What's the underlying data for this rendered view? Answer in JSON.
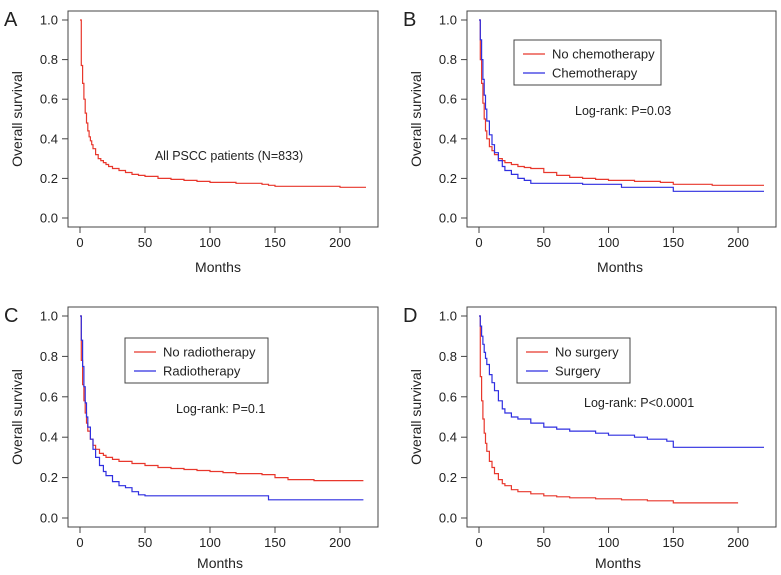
{
  "chart_data": [
    {
      "panel": "A",
      "type": "line",
      "xlabel": "Months",
      "ylabel": "Overall survival",
      "xlim": [
        0,
        220
      ],
      "ylim": [
        0,
        1
      ],
      "xticks": [
        "0",
        "50",
        "100",
        "150",
        "200"
      ],
      "yticks": [
        "0.0",
        "0.2",
        "0.4",
        "0.6",
        "0.8",
        "1.0"
      ],
      "annotation": "All PSCC patients (N=833)",
      "legend": null,
      "series": [
        {
          "name": "All PSCC patients",
          "color": "#e8372c",
          "x": [
            0,
            1,
            2,
            3,
            4,
            5,
            6,
            7,
            8,
            9,
            10,
            12,
            14,
            16,
            18,
            20,
            22,
            25,
            30,
            35,
            40,
            45,
            50,
            60,
            70,
            80,
            90,
            100,
            110,
            120,
            130,
            140,
            145,
            150,
            160,
            170,
            180,
            190,
            200,
            210,
            220
          ],
          "y": [
            1.0,
            0.77,
            0.68,
            0.6,
            0.53,
            0.48,
            0.44,
            0.41,
            0.39,
            0.37,
            0.35,
            0.32,
            0.3,
            0.29,
            0.28,
            0.27,
            0.26,
            0.25,
            0.24,
            0.23,
            0.22,
            0.215,
            0.21,
            0.2,
            0.195,
            0.19,
            0.185,
            0.18,
            0.18,
            0.175,
            0.175,
            0.17,
            0.165,
            0.16,
            0.16,
            0.16,
            0.16,
            0.16,
            0.155,
            0.155,
            0.155
          ]
        }
      ]
    },
    {
      "panel": "B",
      "type": "line",
      "xlabel": "Months",
      "ylabel": "Overall survival",
      "xlim": [
        0,
        220
      ],
      "ylim": [
        0,
        1
      ],
      "xticks": [
        "0",
        "50",
        "100",
        "150",
        "200"
      ],
      "yticks": [
        "0.0",
        "0.2",
        "0.4",
        "0.6",
        "0.8",
        "1.0"
      ],
      "annotation": "Log-rank: P=0.03",
      "legend": [
        "No chemotherapy",
        "Chemotherapy"
      ],
      "series": [
        {
          "name": "No chemotherapy",
          "color": "#e8372c",
          "x": [
            0,
            1,
            2,
            3,
            4,
            5,
            6,
            8,
            10,
            12,
            15,
            18,
            20,
            25,
            30,
            35,
            40,
            50,
            60,
            70,
            80,
            90,
            100,
            110,
            120,
            140,
            150,
            160,
            180,
            200,
            220
          ],
          "y": [
            1.0,
            0.8,
            0.68,
            0.58,
            0.5,
            0.44,
            0.4,
            0.36,
            0.34,
            0.32,
            0.3,
            0.29,
            0.28,
            0.27,
            0.26,
            0.255,
            0.25,
            0.23,
            0.215,
            0.205,
            0.2,
            0.195,
            0.19,
            0.19,
            0.185,
            0.18,
            0.17,
            0.17,
            0.165,
            0.165,
            0.165
          ]
        },
        {
          "name": "Chemotherapy",
          "color": "#2f2fe0",
          "x": [
            0,
            1,
            2,
            3,
            4,
            5,
            6,
            8,
            10,
            12,
            15,
            18,
            20,
            25,
            30,
            35,
            40,
            50,
            60,
            80,
            100,
            110,
            120,
            140,
            150,
            160,
            180,
            200,
            220
          ],
          "y": [
            1.0,
            0.9,
            0.8,
            0.7,
            0.62,
            0.55,
            0.49,
            0.42,
            0.37,
            0.33,
            0.29,
            0.26,
            0.24,
            0.22,
            0.2,
            0.19,
            0.175,
            0.175,
            0.175,
            0.17,
            0.17,
            0.155,
            0.155,
            0.155,
            0.135,
            0.135,
            0.135,
            0.135,
            0.135
          ]
        }
      ]
    },
    {
      "panel": "C",
      "type": "line",
      "xlabel": "Months",
      "ylabel": "Overall survival",
      "xlim": [
        0,
        220
      ],
      "ylim": [
        0,
        1
      ],
      "xticks": [
        "0",
        "50",
        "100",
        "150",
        "200"
      ],
      "yticks": [
        "0.0",
        "0.2",
        "0.4",
        "0.6",
        "0.8",
        "1.0"
      ],
      "annotation": "Log-rank: P=0.1",
      "legend": [
        "No radiotherapy",
        "Radiotherapy"
      ],
      "series": [
        {
          "name": "No radiotherapy",
          "color": "#e8372c",
          "x": [
            0,
            1,
            2,
            3,
            4,
            5,
            6,
            8,
            10,
            12,
            15,
            18,
            20,
            25,
            30,
            40,
            50,
            60,
            70,
            80,
            90,
            100,
            110,
            120,
            140,
            150,
            160,
            180,
            200,
            218
          ],
          "y": [
            1.0,
            0.78,
            0.66,
            0.58,
            0.52,
            0.47,
            0.43,
            0.39,
            0.36,
            0.34,
            0.32,
            0.31,
            0.3,
            0.29,
            0.28,
            0.27,
            0.26,
            0.25,
            0.245,
            0.24,
            0.235,
            0.23,
            0.225,
            0.22,
            0.215,
            0.2,
            0.19,
            0.185,
            0.185,
            0.185
          ]
        },
        {
          "name": "Radiotherapy",
          "color": "#2f2fe0",
          "x": [
            0,
            1,
            2,
            3,
            4,
            5,
            6,
            8,
            10,
            12,
            15,
            18,
            20,
            25,
            30,
            35,
            40,
            45,
            50,
            60,
            80,
            100,
            120,
            140,
            145,
            150,
            180,
            218
          ],
          "y": [
            1.0,
            0.88,
            0.75,
            0.65,
            0.57,
            0.5,
            0.45,
            0.39,
            0.34,
            0.3,
            0.26,
            0.23,
            0.21,
            0.18,
            0.16,
            0.15,
            0.13,
            0.115,
            0.11,
            0.11,
            0.11,
            0.11,
            0.11,
            0.11,
            0.09,
            0.09,
            0.09,
            0.09
          ]
        }
      ]
    },
    {
      "panel": "D",
      "type": "line",
      "xlabel": "Months",
      "ylabel": "Overall survival",
      "xlim": [
        0,
        220
      ],
      "ylim": [
        0,
        1
      ],
      "xticks": [
        "0",
        "50",
        "100",
        "150",
        "200"
      ],
      "yticks": [
        "0.0",
        "0.2",
        "0.4",
        "0.6",
        "0.8",
        "1.0"
      ],
      "annotation": "Log-rank: P<0.0001",
      "legend": [
        "No surgery",
        "Surgery"
      ],
      "series": [
        {
          "name": "No surgery",
          "color": "#e8372c",
          "x": [
            0,
            1,
            2,
            3,
            4,
            5,
            6,
            8,
            10,
            12,
            15,
            18,
            20,
            25,
            30,
            40,
            50,
            60,
            70,
            80,
            90,
            100,
            110,
            120,
            130,
            140,
            150,
            160,
            170,
            180,
            190,
            200
          ],
          "y": [
            1.0,
            0.7,
            0.58,
            0.49,
            0.42,
            0.37,
            0.33,
            0.28,
            0.25,
            0.22,
            0.19,
            0.17,
            0.16,
            0.14,
            0.13,
            0.12,
            0.11,
            0.105,
            0.1,
            0.1,
            0.095,
            0.095,
            0.09,
            0.09,
            0.085,
            0.085,
            0.075,
            0.075,
            0.075,
            0.075,
            0.075,
            0.075
          ]
        },
        {
          "name": "Surgery",
          "color": "#2f2fe0",
          "x": [
            0,
            1,
            2,
            3,
            4,
            5,
            6,
            8,
            10,
            12,
            15,
            18,
            20,
            25,
            30,
            40,
            50,
            60,
            70,
            80,
            90,
            100,
            110,
            120,
            130,
            140,
            145,
            150,
            160,
            180,
            200,
            220
          ],
          "y": [
            1.0,
            0.95,
            0.9,
            0.86,
            0.82,
            0.79,
            0.76,
            0.71,
            0.67,
            0.63,
            0.58,
            0.54,
            0.52,
            0.5,
            0.49,
            0.47,
            0.45,
            0.44,
            0.43,
            0.43,
            0.42,
            0.41,
            0.41,
            0.4,
            0.39,
            0.39,
            0.38,
            0.35,
            0.35,
            0.35,
            0.35,
            0.35
          ]
        }
      ]
    }
  ]
}
